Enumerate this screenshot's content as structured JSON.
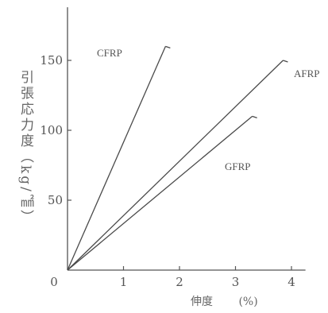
{
  "chart_data": {
    "type": "line",
    "title": "",
    "xlabel": "伸度 (%)",
    "ylabel": "引張応力度（kg/㎟）",
    "xlim": [
      0,
      4.25
    ],
    "ylim": [
      0,
      188
    ],
    "x_ticks": [
      0,
      1,
      2,
      3,
      4
    ],
    "y_ticks": [
      50,
      100,
      150
    ],
    "grid": false,
    "legend": "labels next to lines",
    "series": [
      {
        "name": "CFRP",
        "x": [
          0,
          1.75
        ],
        "y": [
          0,
          160
        ]
      },
      {
        "name": "AFRP",
        "x": [
          0,
          3.85
        ],
        "y": [
          0,
          150
        ]
      },
      {
        "name": "GFRP",
        "x": [
          0,
          3.3
        ],
        "y": [
          0,
          110
        ]
      }
    ]
  }
}
